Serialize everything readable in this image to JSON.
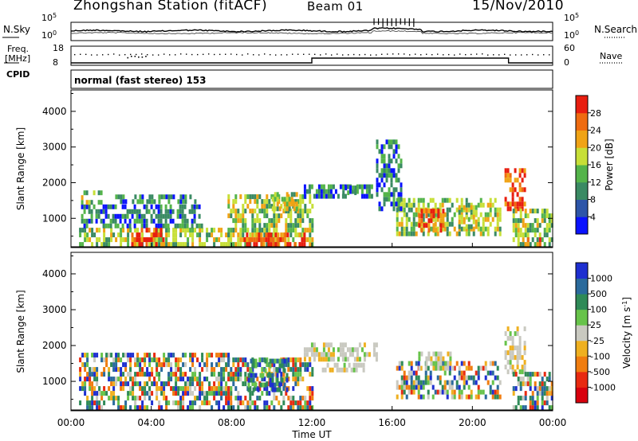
{
  "header": {
    "station": "Zhongshan Station (fitACF)",
    "beam": "Beam 01",
    "date": "15/Nov/2010"
  },
  "status_panels": {
    "nsky_label": "N.Sky",
    "nsearch_label": "N.Search",
    "freq_label": "Freq.",
    "freq_unit": "[MHz]",
    "nave_label": "Nave",
    "cpid_label": "CPID",
    "cpid_text": "normal (fast stereo) 153",
    "noise_ticks_left": [
      "10^5",
      "10^0"
    ],
    "noise_ticks_right": [
      "10^5",
      "10^0"
    ],
    "freq_ticks": [
      "18",
      "8"
    ],
    "nave_ticks": [
      "60",
      "0"
    ]
  },
  "chart_data": [
    {
      "type": "heatmap",
      "name": "power",
      "ylabel": "Slant Range [km]",
      "ylim": [
        180,
        4600
      ],
      "yticks": [
        "1000",
        "2000",
        "3000",
        "4000"
      ],
      "xlim": [
        0,
        24
      ],
      "colorbar": {
        "label": "Power [dB]",
        "ticks": [
          "4",
          "8",
          "12",
          "16",
          "20",
          "24",
          "28"
        ],
        "colors": [
          "#0a12ff",
          "#2d55a8",
          "#3a8a63",
          "#54b44a",
          "#c7df37",
          "#f0a315",
          "#ef6b10",
          "#e81e10"
        ]
      },
      "regions": [
        {
          "t0": 0.4,
          "t1": 8.0,
          "r0": 200,
          "r1": 720,
          "level": "mid"
        },
        {
          "t0": 0.5,
          "t1": 6.5,
          "r0": 720,
          "r1": 1380,
          "level": "low"
        },
        {
          "t0": 0.5,
          "t1": 1.5,
          "r0": 1380,
          "r1": 1750,
          "level": "mid"
        },
        {
          "t0": 2.2,
          "t1": 6.3,
          "r0": 1400,
          "r1": 1650,
          "level": "low"
        },
        {
          "t0": 3.0,
          "t1": 4.6,
          "r0": 200,
          "r1": 700,
          "level": "high"
        },
        {
          "t0": 7.8,
          "t1": 12.0,
          "r0": 200,
          "r1": 1650,
          "level": "mid"
        },
        {
          "t0": 8.6,
          "t1": 11.6,
          "r0": 200,
          "r1": 520,
          "level": "high"
        },
        {
          "t0": 10.0,
          "t1": 11.2,
          "r0": 1200,
          "r1": 1650,
          "level": "mid"
        },
        {
          "t0": 11.6,
          "t1": 15.0,
          "r0": 1550,
          "r1": 1950,
          "level": "low"
        },
        {
          "t0": 13.4,
          "t1": 14.2,
          "r0": 1650,
          "r1": 1850,
          "level": "low"
        },
        {
          "t0": 16.2,
          "t1": 21.4,
          "r0": 500,
          "r1": 1500,
          "level": "mid"
        },
        {
          "t0": 17.3,
          "t1": 18.5,
          "r0": 600,
          "r1": 1150,
          "level": "high"
        },
        {
          "t0": 19.3,
          "t1": 20.2,
          "r0": 700,
          "r1": 1250,
          "level": "mid"
        },
        {
          "t0": 21.6,
          "t1": 22.6,
          "r0": 1200,
          "r1": 2400,
          "level": "high"
        },
        {
          "t0": 22.0,
          "t1": 24.0,
          "r0": 200,
          "r1": 1200,
          "level": "mid"
        },
        {
          "t0": 22.6,
          "t1": 23.4,
          "r0": 200,
          "r1": 450,
          "level": "high"
        },
        {
          "t0": 15.2,
          "t1": 16.5,
          "r0": 1200,
          "r1": 3100,
          "level": "low"
        }
      ]
    },
    {
      "type": "heatmap",
      "name": "velocity",
      "ylabel": "Slant Range [km]",
      "ylim": [
        180,
        4600
      ],
      "yticks": [
        "1000",
        "2000",
        "3000",
        "4000"
      ],
      "xlim": [
        0,
        24
      ],
      "xticks": [
        "00:00",
        "04:00",
        "08:00",
        "12:00",
        "16:00",
        "20:00",
        "00:00"
      ],
      "xlabel": "Time UT",
      "colorbar": {
        "label": "Velocity [m s^-1]",
        "ticks": [
          "1000",
          "500",
          "100",
          "25",
          "-25",
          "-100",
          "-500",
          "-1000"
        ],
        "colors": [
          "#1e2fd0",
          "#2a6a9c",
          "#2f8a57",
          "#67c34a",
          "#c9c9c0",
          "#efb020",
          "#f07d10",
          "#e82a10",
          "#d8000d"
        ]
      },
      "regions": [
        {
          "t0": 0.4,
          "t1": 8.0,
          "r0": 200,
          "r1": 1700,
          "level": "mix"
        },
        {
          "t0": 7.8,
          "t1": 12.0,
          "r0": 200,
          "r1": 1650,
          "level": "mix"
        },
        {
          "t0": 8.8,
          "t1": 10.8,
          "r0": 700,
          "r1": 1600,
          "level": "pos"
        },
        {
          "t0": 11.6,
          "t1": 15.2,
          "r0": 1550,
          "r1": 1950,
          "level": "zero"
        },
        {
          "t0": 12.5,
          "t1": 14.6,
          "r0": 1250,
          "r1": 1450,
          "level": "zero"
        },
        {
          "t0": 16.2,
          "t1": 21.4,
          "r0": 500,
          "r1": 1500,
          "level": "mix"
        },
        {
          "t0": 17.3,
          "t1": 19.0,
          "r0": 1300,
          "r1": 1800,
          "level": "zero"
        },
        {
          "t0": 21.6,
          "t1": 22.6,
          "r0": 1200,
          "r1": 2400,
          "level": "zero"
        },
        {
          "t0": 22.0,
          "t1": 24.0,
          "r0": 200,
          "r1": 1200,
          "level": "mix"
        }
      ]
    }
  ]
}
